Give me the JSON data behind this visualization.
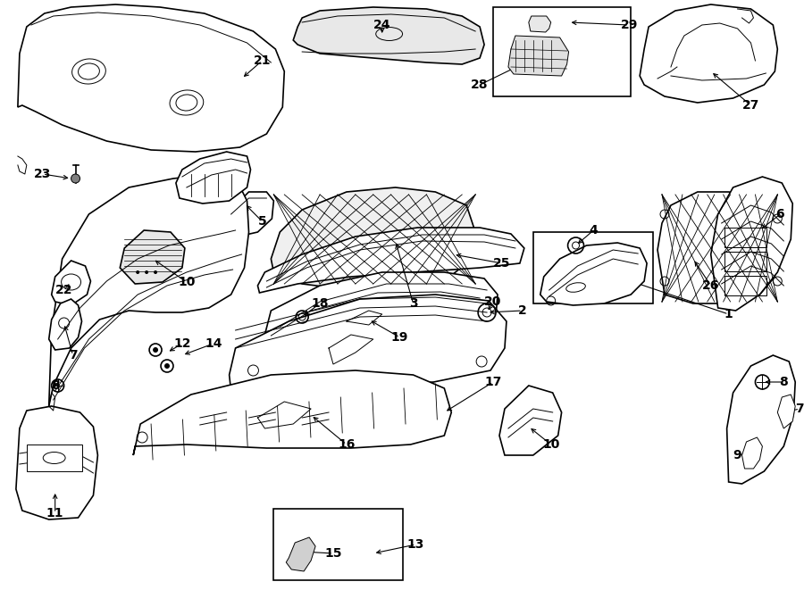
{
  "bg_color": "#ffffff",
  "line_color": "#000000",
  "fig_width": 9.0,
  "fig_height": 6.61,
  "dpi": 100,
  "label_fontsize": 10,
  "label_fontweight": "bold"
}
